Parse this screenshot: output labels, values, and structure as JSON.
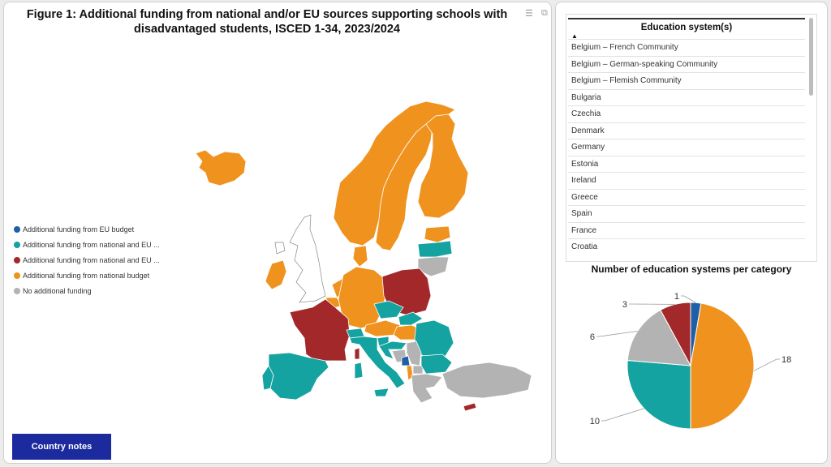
{
  "title": "Figure 1: Additional funding from national and/or EU sources supporting schools with disadvantaged students, ISCED 1-34, 2023/2024",
  "title_line1": "Figure 1: Additional funding from national and/or EU sources supporting schools with",
  "title_line2": "disadvantaged students, ISCED 1-34, 2023/2024",
  "icons": {
    "filter": "filter-icon",
    "expand": "expand-icon"
  },
  "legend": [
    {
      "label": "Additional funding from EU budget",
      "color": "#1f5fa8"
    },
    {
      "label": "Additional funding from national and EU ...",
      "color": "#14a3a0"
    },
    {
      "label": "Additional funding from national and EU ...",
      "color": "#a3282a"
    },
    {
      "label": "Additional funding from national budget",
      "color": "#f0921e"
    },
    {
      "label": "No additional funding",
      "color": "#b3b3b3"
    }
  ],
  "buttons": {
    "country_notes": "Country notes"
  },
  "table": {
    "header": "Education system(s)",
    "rows": [
      "Belgium – French Community",
      "Belgium – German-speaking Community",
      "Belgium – Flemish Community",
      "Bulgaria",
      "Czechia",
      "Denmark",
      "Germany",
      "Estonia",
      "Ireland",
      "Greece",
      "Spain",
      "France",
      "Croatia"
    ]
  },
  "chart_data": {
    "type": "pie",
    "title": "Number of education systems per category",
    "slices": [
      {
        "label": "1",
        "value": 1,
        "color": "#1f5fa8"
      },
      {
        "label": "18",
        "value": 18,
        "color": "#f0921e"
      },
      {
        "label": "10",
        "value": 10,
        "color": "#14a3a0"
      },
      {
        "label": "6",
        "value": 6,
        "color": "#b3b3b3"
      },
      {
        "label": "3",
        "value": 3,
        "color": "#a3282a"
      }
    ]
  },
  "map_regions": [
    {
      "name": "iceland",
      "category": "national"
    },
    {
      "name": "norway",
      "category": "national"
    },
    {
      "name": "sweden",
      "category": "national"
    },
    {
      "name": "finland",
      "category": "national"
    },
    {
      "name": "estonia",
      "category": "national"
    },
    {
      "name": "latvia",
      "category": "national-eu-a"
    },
    {
      "name": "lithuania",
      "category": "none"
    },
    {
      "name": "ireland",
      "category": "national"
    },
    {
      "name": "denmark",
      "category": "national"
    },
    {
      "name": "netherlands",
      "category": "national"
    },
    {
      "name": "belgium",
      "category": "national"
    },
    {
      "name": "germany",
      "category": "national"
    },
    {
      "name": "poland",
      "category": "national-eu-b"
    },
    {
      "name": "france",
      "category": "national-eu-b"
    },
    {
      "name": "czechia",
      "category": "national-eu-a"
    },
    {
      "name": "slovakia",
      "category": "national-eu-a"
    },
    {
      "name": "austria",
      "category": "national"
    },
    {
      "name": "switzerland",
      "category": "national-eu-a"
    },
    {
      "name": "hungary",
      "category": "national"
    },
    {
      "name": "romania",
      "category": "national-eu-a"
    },
    {
      "name": "slovenia",
      "category": "national-eu-a"
    },
    {
      "name": "croatia",
      "category": "national-eu-a"
    },
    {
      "name": "serbia",
      "category": "none"
    },
    {
      "name": "bosnia",
      "category": "none"
    },
    {
      "name": "montenegro",
      "category": "eu"
    },
    {
      "name": "albania",
      "category": "national"
    },
    {
      "name": "north-macedonia",
      "category": "none"
    },
    {
      "name": "bulgaria",
      "category": "national-eu-a"
    },
    {
      "name": "greece",
      "category": "none"
    },
    {
      "name": "turkey",
      "category": "none"
    },
    {
      "name": "italy",
      "category": "national-eu-a"
    },
    {
      "name": "sardinia",
      "category": "national-eu-a"
    },
    {
      "name": "sicily",
      "category": "national-eu-a"
    },
    {
      "name": "corsica",
      "category": "national-eu-b"
    },
    {
      "name": "spain",
      "category": "national-eu-a"
    },
    {
      "name": "portugal",
      "category": "national-eu-a"
    },
    {
      "name": "cyprus",
      "category": "national-eu-b"
    },
    {
      "name": "malta",
      "category": "national-eu-a"
    }
  ],
  "category_colors": {
    "eu": "#1f5fa8",
    "national-eu-a": "#14a3a0",
    "national-eu-b": "#a3282a",
    "national": "#f0921e",
    "none": "#b3b3b3"
  }
}
